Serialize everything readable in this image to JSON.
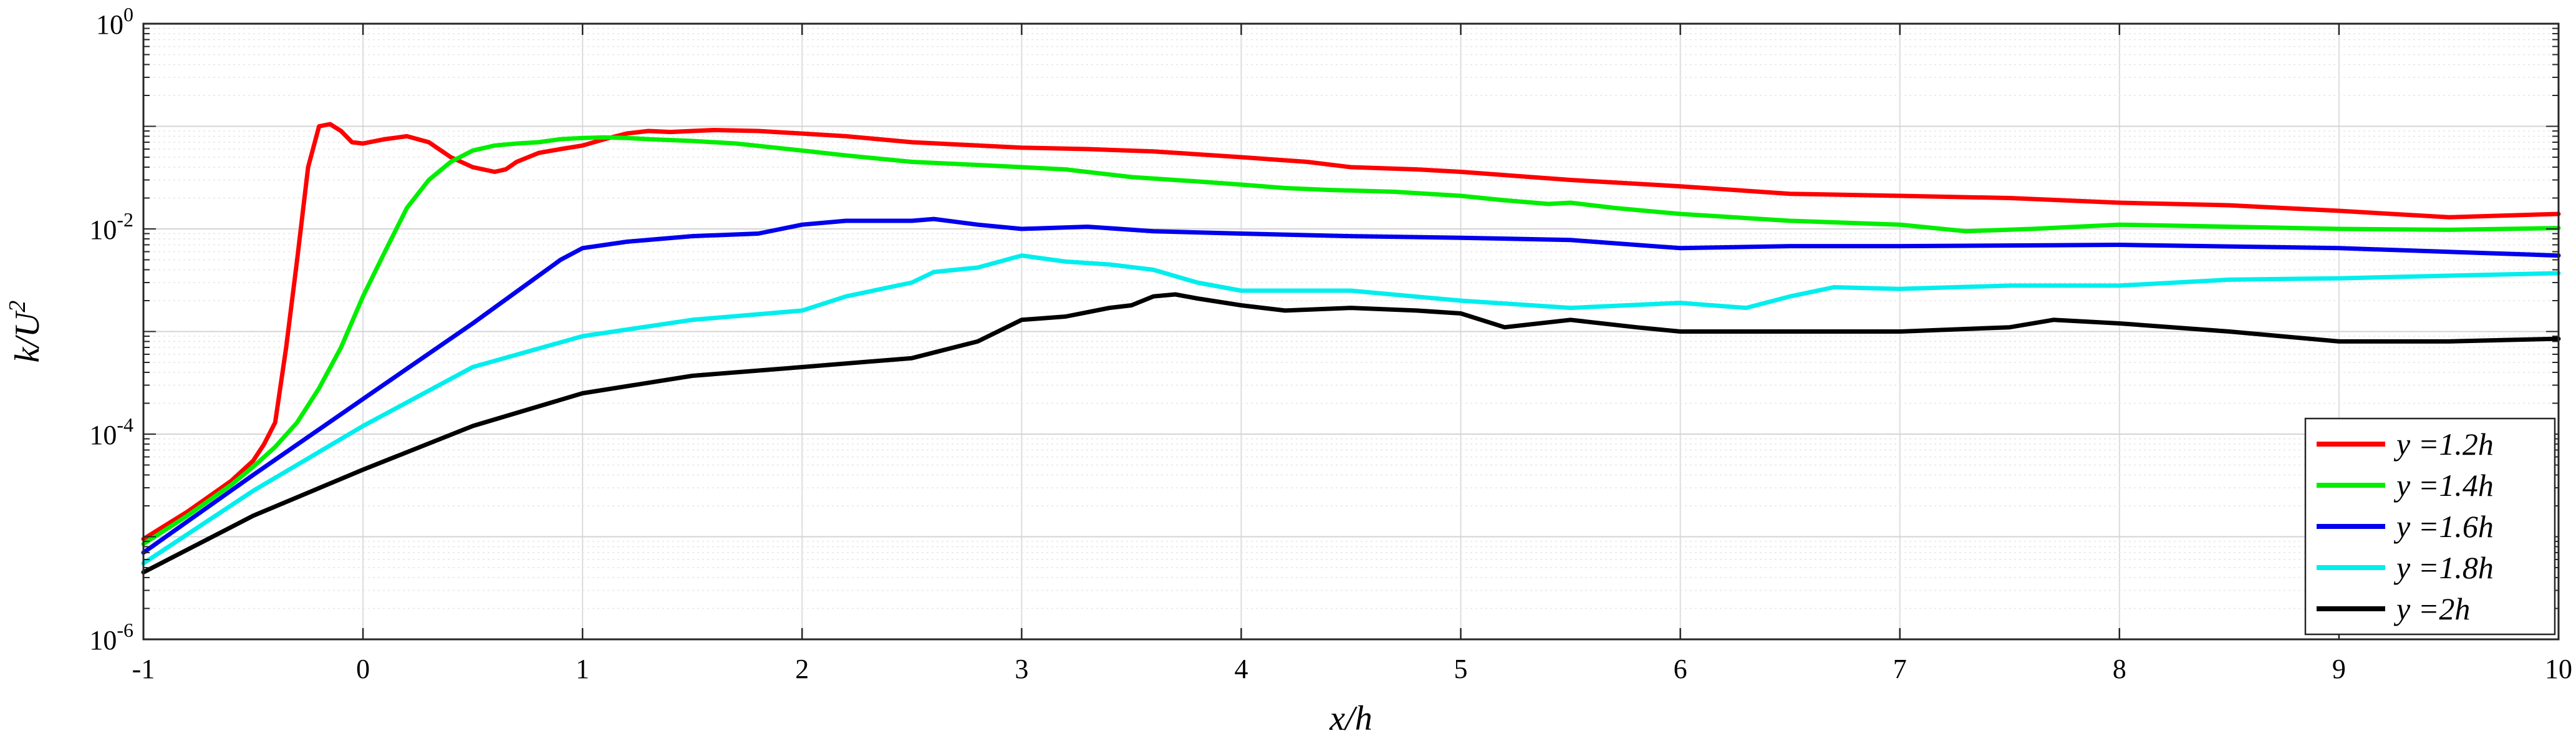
{
  "chart_data": {
    "type": "line",
    "title": "",
    "xlabel": "x/h",
    "ylabel": "k/U^2",
    "xlim": [
      -1,
      10
    ],
    "ylim": [
      1e-06,
      1
    ],
    "yscale": "log",
    "grid": true,
    "minor_grid": true,
    "legend_position": "bottom-right",
    "x_ticks": [
      -1,
      0,
      1,
      2,
      3,
      4,
      5,
      6,
      7,
      8,
      9,
      10
    ],
    "x_tick_labels": [
      "-1",
      "0",
      "1",
      "2",
      "3",
      "4",
      "5",
      "6",
      "7",
      "8",
      "9",
      "10"
    ],
    "y_ticks": [
      1e-06,
      0.0001,
      0.01,
      1
    ],
    "y_tick_labels": [
      {
        "base": "10",
        "exp": "-6"
      },
      {
        "base": "10",
        "exp": "-4"
      },
      {
        "base": "10",
        "exp": "-2"
      },
      {
        "base": "10",
        "exp": "0"
      }
    ],
    "series": [
      {
        "name": "y =1.2h",
        "color": "#ff0000",
        "x": [
          -1,
          -0.8,
          -0.6,
          -0.5,
          -0.45,
          -0.4,
          -0.35,
          -0.3,
          -0.25,
          -0.2,
          -0.15,
          -0.1,
          -0.05,
          0,
          0.1,
          0.2,
          0.3,
          0.4,
          0.5,
          0.6,
          0.65,
          0.7,
          0.8,
          0.9,
          1,
          1.1,
          1.2,
          1.3,
          1.4,
          1.5,
          1.6,
          1.8,
          2,
          2.2,
          2.5,
          2.8,
          3,
          3.3,
          3.6,
          4,
          4.3,
          4.5,
          4.8,
          5,
          5.5,
          6,
          6.5,
          7,
          7.5,
          8,
          8.5,
          9,
          9.5,
          10
        ],
        "y": [
          9.5e-06,
          1.75e-05,
          3.5e-05,
          5.5e-05,
          8e-05,
          0.00013,
          0.0007,
          0.005,
          0.04,
          0.1,
          0.105,
          0.09,
          0.07,
          0.068,
          0.075,
          0.08,
          0.07,
          0.05,
          0.04,
          0.036,
          0.038,
          0.045,
          0.055,
          0.06,
          0.065,
          0.075,
          0.085,
          0.09,
          0.088,
          0.09,
          0.092,
          0.09,
          0.085,
          0.08,
          0.07,
          0.065,
          0.062,
          0.06,
          0.057,
          0.05,
          0.045,
          0.04,
          0.038,
          0.036,
          0.03,
          0.026,
          0.022,
          0.021,
          0.02,
          0.018,
          0.017,
          0.015,
          0.013,
          0.014
        ]
      },
      {
        "name": "y =1.4h",
        "color": "#00ee00",
        "x": [
          -1,
          -0.8,
          -0.6,
          -0.5,
          -0.4,
          -0.3,
          -0.2,
          -0.1,
          0,
          0.1,
          0.2,
          0.3,
          0.4,
          0.5,
          0.6,
          0.7,
          0.8,
          0.9,
          1,
          1.1,
          1.2,
          1.3,
          1.5,
          1.7,
          2,
          2.2,
          2.5,
          2.8,
          3,
          3.2,
          3.5,
          3.8,
          4,
          4.2,
          4.4,
          4.7,
          5,
          5.2,
          5.4,
          5.5,
          5.7,
          6,
          6.5,
          7,
          7.3,
          7.6,
          8,
          8.5,
          9,
          9.5,
          10
        ],
        "y": [
          8.5e-06,
          1.6e-05,
          3.2e-05,
          4.8e-05,
          7.5e-05,
          0.00013,
          0.00028,
          0.0007,
          0.0022,
          0.006,
          0.016,
          0.03,
          0.045,
          0.058,
          0.065,
          0.068,
          0.07,
          0.075,
          0.077,
          0.078,
          0.077,
          0.075,
          0.072,
          0.068,
          0.058,
          0.052,
          0.045,
          0.042,
          0.04,
          0.038,
          0.032,
          0.029,
          0.027,
          0.025,
          0.024,
          0.023,
          0.021,
          0.019,
          0.0175,
          0.018,
          0.016,
          0.014,
          0.012,
          0.011,
          0.0095,
          0.01,
          0.011,
          0.0105,
          0.01,
          0.0098,
          0.0102
        ]
      },
      {
        "name": "y =1.6h",
        "color": "#0000ee",
        "x": [
          -1,
          -0.5,
          0,
          0.5,
          0.8,
          0.9,
          1,
          1.2,
          1.5,
          1.8,
          2,
          2.2,
          2.5,
          2.6,
          2.8,
          3,
          3.3,
          3.6,
          4,
          4.5,
          5,
          5.5,
          6,
          6.5,
          7,
          8,
          9,
          10
        ],
        "y": [
          7e-06,
          4e-05,
          0.00022,
          0.0012,
          0.0035,
          0.005,
          0.0065,
          0.0075,
          0.0085,
          0.009,
          0.011,
          0.012,
          0.012,
          0.0125,
          0.011,
          0.01,
          0.0105,
          0.0095,
          0.009,
          0.0085,
          0.0082,
          0.0078,
          0.0065,
          0.0068,
          0.0068,
          0.007,
          0.0065,
          0.0055
        ]
      },
      {
        "name": "y =1.8h",
        "color": "#00eeee",
        "x": [
          -1,
          -0.5,
          0,
          0.5,
          1,
          1.5,
          2,
          2.2,
          2.5,
          2.6,
          2.8,
          3,
          3.2,
          3.4,
          3.6,
          3.8,
          4,
          4.5,
          5,
          5.5,
          6,
          6.3,
          6.5,
          6.7,
          7,
          7.5,
          8,
          8.5,
          9,
          9.5,
          10
        ],
        "y": [
          5.5e-06,
          2.8e-05,
          0.00012,
          0.00045,
          0.0009,
          0.0013,
          0.0016,
          0.0022,
          0.003,
          0.0038,
          0.0042,
          0.0055,
          0.0048,
          0.0045,
          0.004,
          0.003,
          0.0025,
          0.0025,
          0.002,
          0.0017,
          0.0019,
          0.0017,
          0.0022,
          0.0027,
          0.0026,
          0.0028,
          0.0028,
          0.0032,
          0.0033,
          0.0035,
          0.0037
        ]
      },
      {
        "name": "y =2h",
        "color": "#000000",
        "x": [
          -1,
          -0.5,
          0,
          0.5,
          1,
          1.5,
          2,
          2.5,
          2.8,
          3,
          3.2,
          3.4,
          3.5,
          3.6,
          3.7,
          3.8,
          4,
          4.2,
          4.5,
          4.8,
          5,
          5.2,
          5.5,
          5.8,
          6,
          6.5,
          7,
          7.5,
          7.7,
          8,
          8.5,
          9,
          9.5,
          10
        ],
        "y": [
          4.5e-06,
          1.6e-05,
          4.5e-05,
          0.00012,
          0.00025,
          0.00037,
          0.00045,
          0.00055,
          0.0008,
          0.0013,
          0.0014,
          0.0017,
          0.0018,
          0.0022,
          0.0023,
          0.0021,
          0.0018,
          0.0016,
          0.0017,
          0.0016,
          0.0015,
          0.0011,
          0.0013,
          0.0011,
          0.001,
          0.001,
          0.001,
          0.0011,
          0.0013,
          0.0012,
          0.001,
          0.0008,
          0.0008,
          0.00085
        ]
      }
    ]
  }
}
